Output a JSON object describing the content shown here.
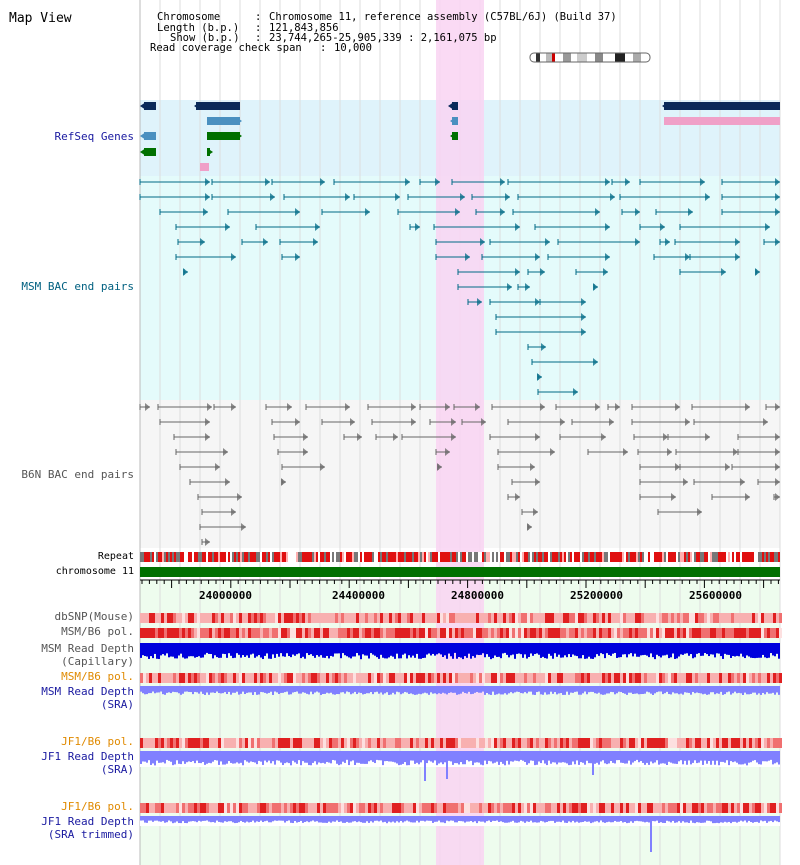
{
  "title": "Map View",
  "info": {
    "chromosome_label": "Chromosome",
    "chromosome_value": "Chromosome 11, reference assembly (C57BL/6J) (Build 37)",
    "length_label": "Length (b.p.)",
    "length_value": "121,843,856",
    "show_label": "Show (b.p.)",
    "show_value": "23,744,265-25,905,339 : 2,161,075 bp",
    "coverage_label": "Read coverage check span",
    "coverage_value": "10,000"
  },
  "tracks": {
    "refseq": "RefSeq Genes",
    "msm_bac": "MSM BAC end pairs",
    "b6n_bac": "B6N BAC end pairs",
    "repeat": "Repeat",
    "chromosome": "chromosome 11",
    "dbsnp": "dbSNP(Mouse)",
    "msm_b6_pol_1": "MSM/B6 pol.",
    "msm_depth_cap_1": "MSM Read Depth",
    "msm_depth_cap_2": "(Capillary)",
    "msm_b6_pol_2": "MSM/B6 pol.",
    "msm_depth_sra_1": "MSM Read Depth",
    "msm_depth_sra_2": "(SRA)",
    "jf1_b6_pol_1": "JF1/B6 pol.",
    "jf1_depth_sra_1": "JF1 Read Depth",
    "jf1_depth_sra_2": "(SRA)",
    "jf1_b6_pol_2": "JF1/B6 pol.",
    "jf1_depth_trim_1": "JF1 Read Depth",
    "jf1_depth_trim_2": "(SRA trimmed)"
  },
  "ruler_ticks": [
    "24000000",
    "24400000",
    "24800000",
    "25200000",
    "25600000"
  ],
  "colors": {
    "refseq_bg": "#dff3fb",
    "msm_bg": "#e4fbfb",
    "b6n_bg": "#f6f6f6",
    "highlight": "#f9d3f2",
    "chrom_bar": "#007000",
    "depth_dark": "#0000dd",
    "depth_light": "#8080ff",
    "label_navy": "#1a1aa0",
    "label_teal": "#006080",
    "label_orange": "#e08a00"
  }
}
